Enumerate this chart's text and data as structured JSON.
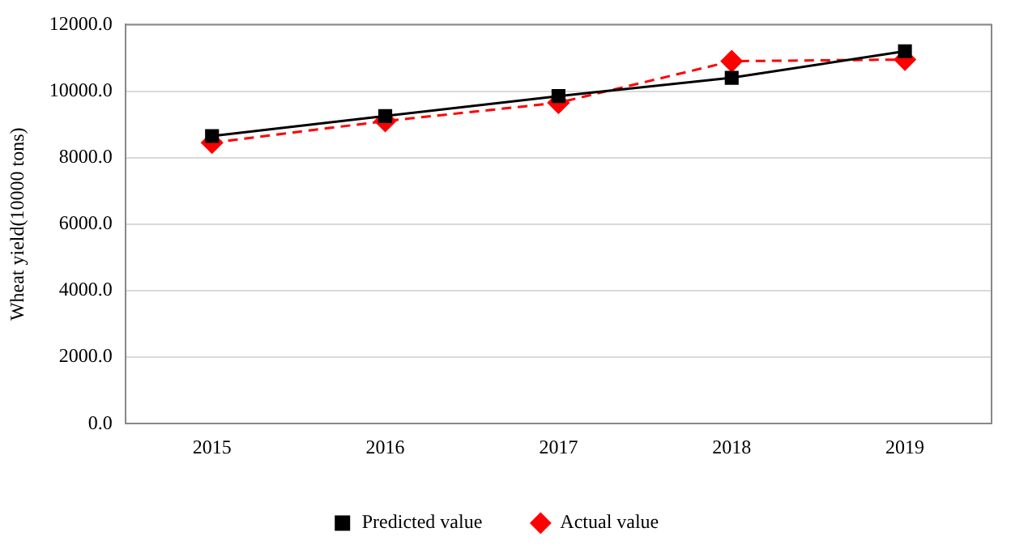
{
  "chart_data": {
    "type": "line",
    "ylabel": "Wheat yield(10000 tons)",
    "categories": [
      "2015",
      "2016",
      "2017",
      "2018",
      "2019"
    ],
    "series": [
      {
        "name": "Actual value",
        "color": "#ff0000",
        "values": [
          8450,
          9100,
          9650,
          10900,
          10950
        ],
        "marker": "diamond",
        "line_style": "dashed"
      },
      {
        "name": "Predicted value",
        "color": "#000000",
        "values": [
          8650,
          9250,
          9850,
          10400,
          11200
        ],
        "marker": "square",
        "line_style": "solid"
      }
    ],
    "ylim": [
      0,
      12000
    ],
    "yticks": [
      {
        "value": 0,
        "label": "0.0"
      },
      {
        "value": 2000,
        "label": "2000.0"
      },
      {
        "value": 4000,
        "label": "4000.0"
      },
      {
        "value": 6000,
        "label": "6000.0"
      },
      {
        "value": 8000,
        "label": "8000.0"
      },
      {
        "value": 10000,
        "label": "10000.0"
      },
      {
        "value": 12000,
        "label": "12000.0"
      }
    ],
    "grid": "y",
    "legend": "bottom"
  }
}
